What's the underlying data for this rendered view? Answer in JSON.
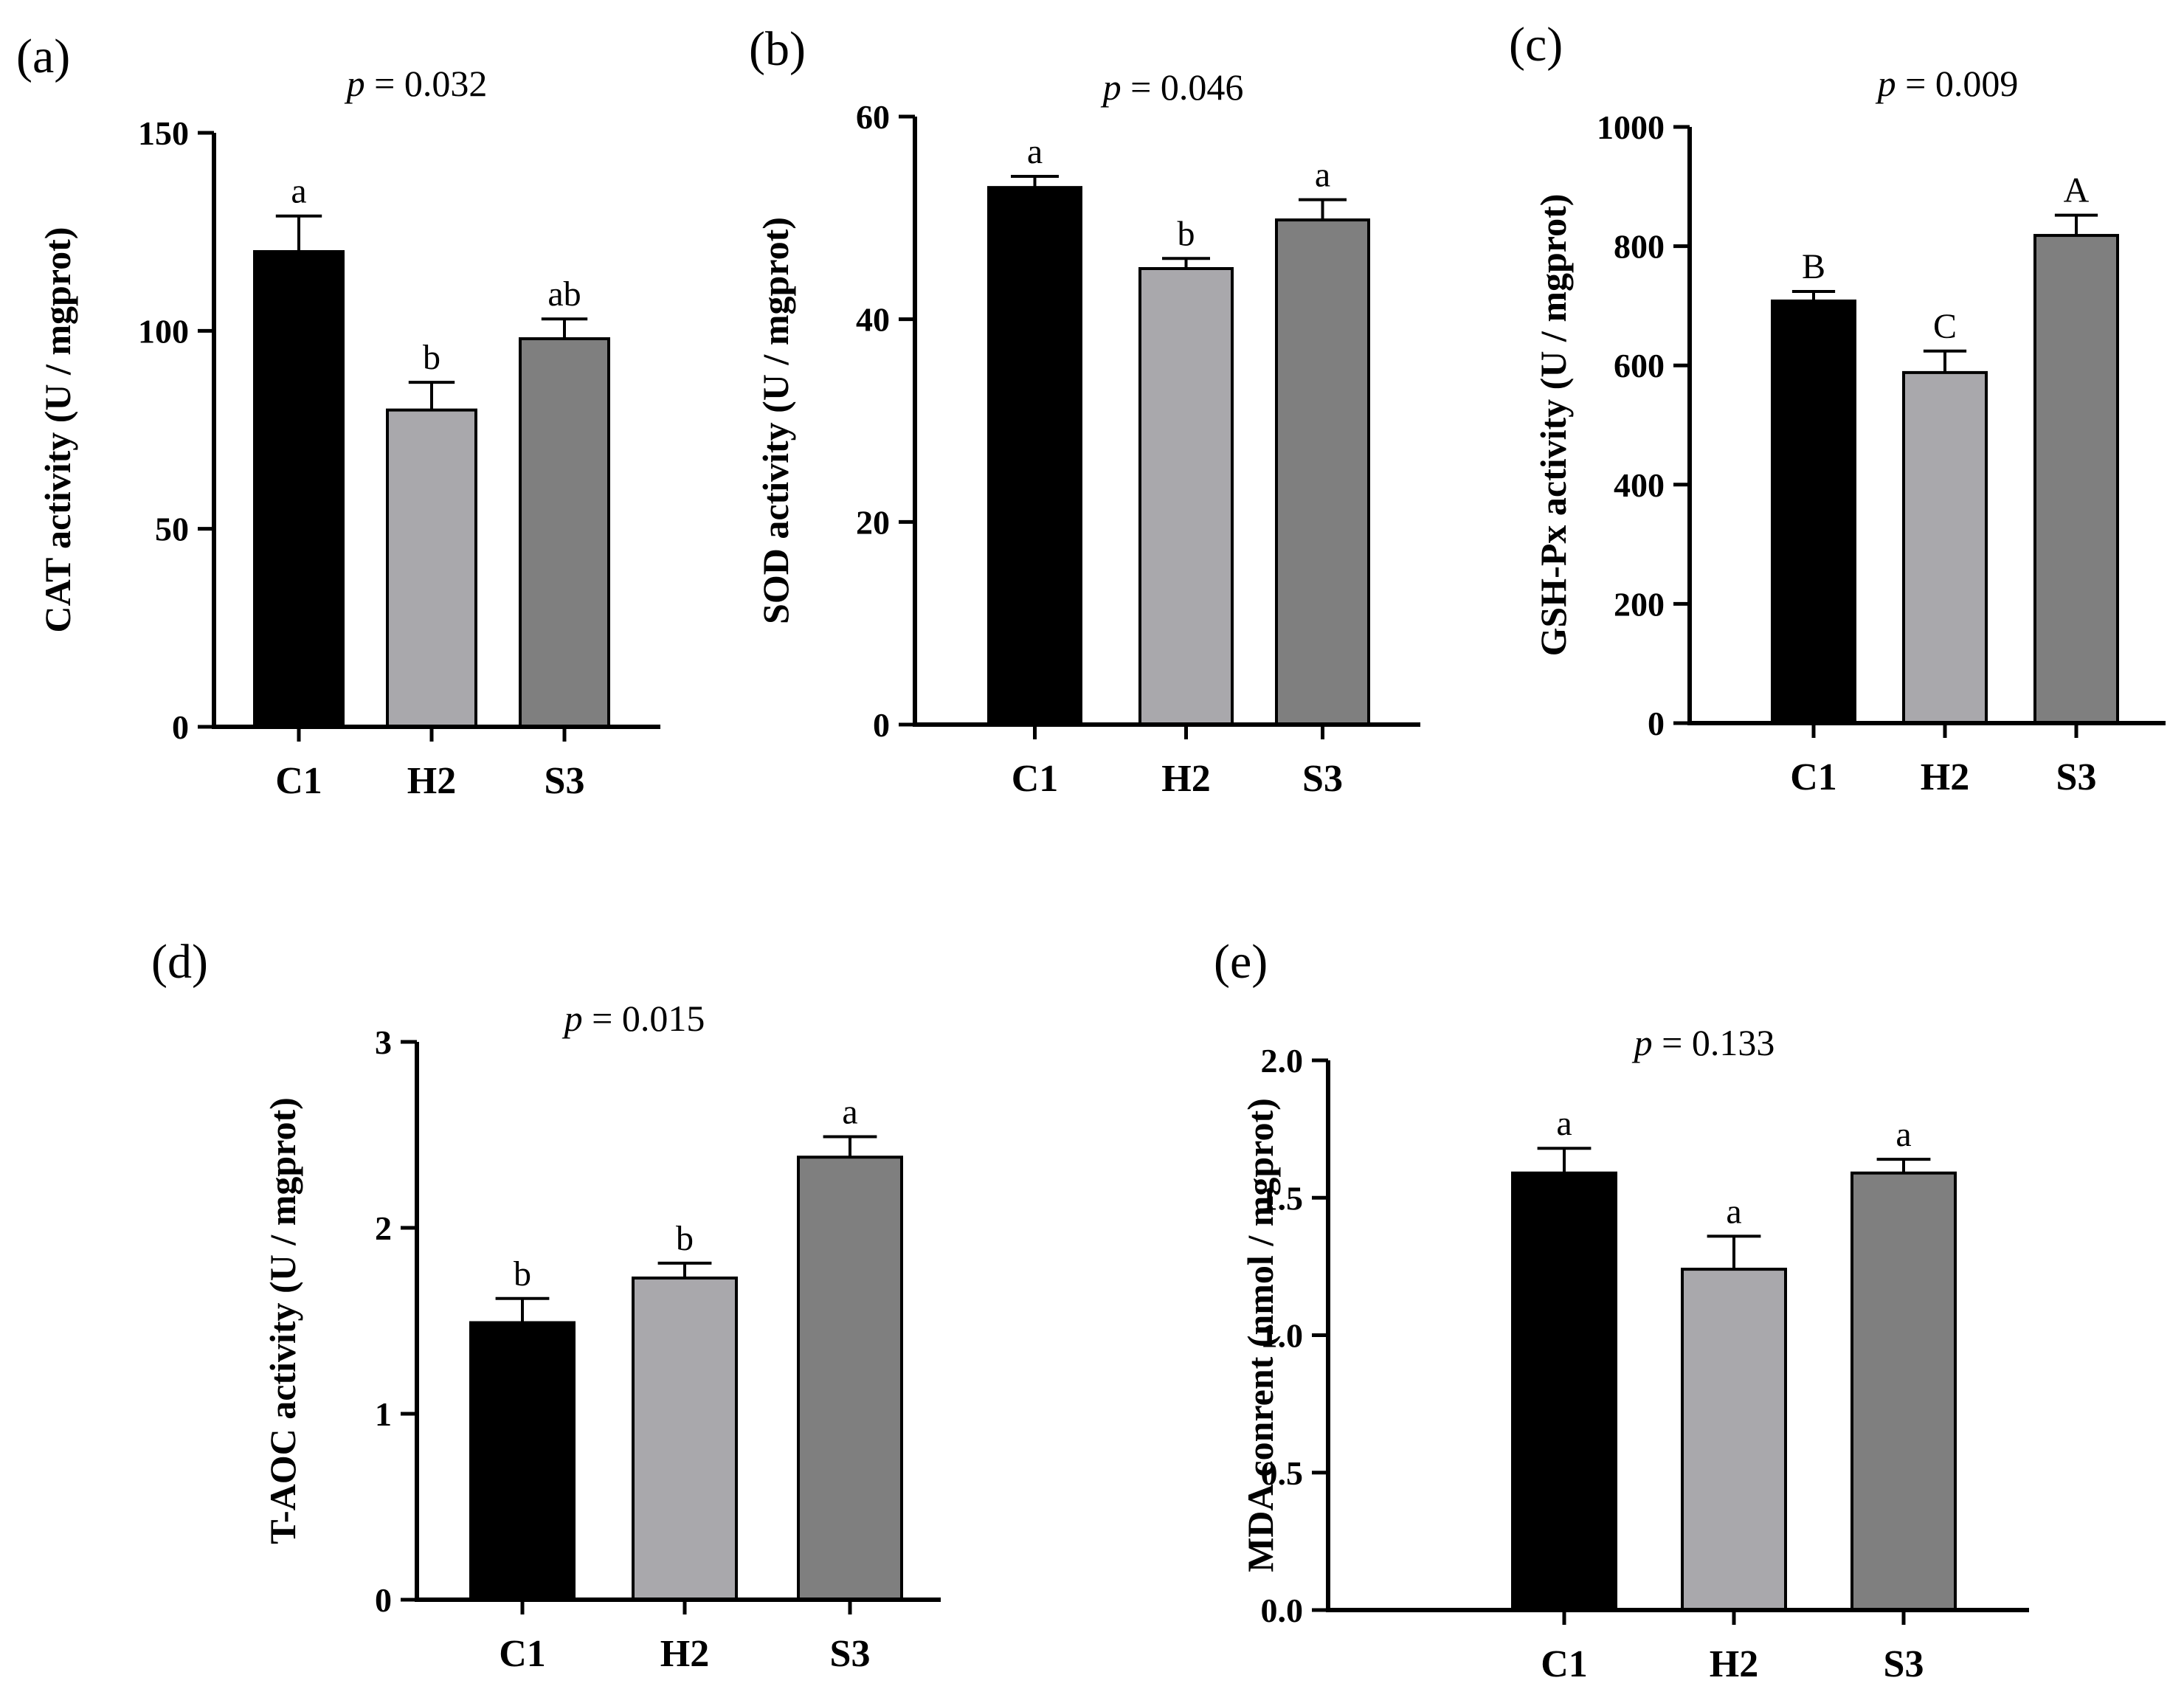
{
  "figure": {
    "background": "#ffffff"
  },
  "chart_data": [
    {
      "type": "bar",
      "panel": "(a)",
      "pvalue": "p = 0.032",
      "ylabel": "CAT activity (U / mgprot)",
      "categories": [
        "C1",
        "H2",
        "S3"
      ],
      "values": [
        120,
        80,
        98
      ],
      "errors": [
        9,
        7,
        5
      ],
      "significance": [
        "a",
        "b",
        "ab"
      ],
      "colors": [
        "#000000",
        "#a9a8ac",
        "#7f7f7f"
      ],
      "ylim": [
        0,
        150
      ],
      "yticks": [
        0,
        50,
        100,
        150
      ],
      "yticklabels": [
        "0",
        "50",
        "100",
        "150"
      ]
    },
    {
      "type": "bar",
      "panel": "(b)",
      "pvalue": "p = 0.046",
      "ylabel": "SOD activity (U / mgprot)",
      "categories": [
        "C1",
        "H2",
        "S3"
      ],
      "values": [
        53,
        45,
        49.8
      ],
      "errors": [
        1.1,
        1.0,
        2.0
      ],
      "significance": [
        "a",
        "b",
        "a"
      ],
      "colors": [
        "#000000",
        "#a9a8ac",
        "#7f7f7f"
      ],
      "ylim": [
        0,
        60
      ],
      "yticks": [
        0,
        20,
        40,
        60
      ],
      "yticklabels": [
        "0",
        "20",
        "40",
        "60"
      ]
    },
    {
      "type": "bar",
      "panel": "(c)",
      "pvalue": "p = 0.009",
      "ylabel": "GSH-Px activity (U / mgprot)",
      "categories": [
        "C1",
        "H2",
        "S3"
      ],
      "values": [
        708,
        588,
        818
      ],
      "errors": [
        16,
        36,
        34
      ],
      "significance": [
        "B",
        "C",
        "A"
      ],
      "colors": [
        "#000000",
        "#a9a8ac",
        "#7f7f7f"
      ],
      "ylim": [
        0,
        1000
      ],
      "yticks": [
        0,
        200,
        400,
        600,
        800,
        1000
      ],
      "yticklabels": [
        "0",
        "200",
        "400",
        "600",
        "800",
        "1000"
      ]
    },
    {
      "type": "bar",
      "panel": "(d)",
      "pvalue": "p = 0.015",
      "ylabel": "T-AOC activity (U / mgprot)",
      "categories": [
        "C1",
        "H2",
        "S3"
      ],
      "values": [
        1.49,
        1.73,
        2.38
      ],
      "errors": [
        0.13,
        0.08,
        0.11
      ],
      "significance": [
        "b",
        "b",
        "a"
      ],
      "colors": [
        "#000000",
        "#a9a8ac",
        "#7f7f7f"
      ],
      "ylim": [
        0,
        3
      ],
      "yticks": [
        0,
        1,
        2,
        3
      ],
      "yticklabels": [
        "0",
        "1",
        "2",
        "3"
      ]
    },
    {
      "type": "bar",
      "panel": "(e)",
      "pvalue": "p = 0.133",
      "ylabel": "MDA conrent (nmol / mgprot)",
      "categories": [
        "C1",
        "H2",
        "S3"
      ],
      "values": [
        1.59,
        1.24,
        1.59
      ],
      "errors": [
        0.09,
        0.12,
        0.05
      ],
      "significance": [
        "a",
        "a",
        "a"
      ],
      "colors": [
        "#000000",
        "#a9a8ac",
        "#7f7f7f"
      ],
      "ylim": [
        0,
        2
      ],
      "yticks": [
        0,
        0.5,
        1,
        1.5,
        2
      ],
      "yticklabels": [
        "0.0",
        "0.5",
        "1.0",
        "1.5",
        "2.0"
      ]
    }
  ]
}
